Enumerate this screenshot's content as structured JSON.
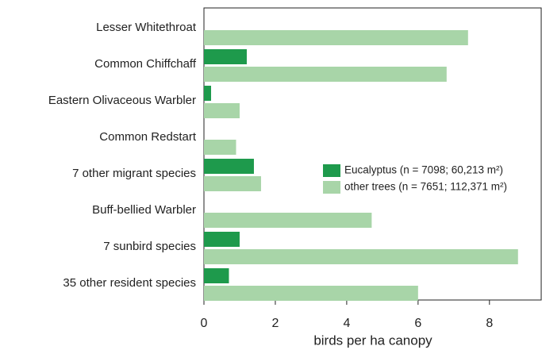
{
  "chart_data": {
    "type": "barh",
    "categories": [
      "Lesser Whitethroat",
      "Common Chiffchaff",
      "Eastern Olivaceous Warbler",
      "Common Redstart",
      "7 other migrant species",
      "Buff-bellied Warbler",
      "7 sunbird species",
      "35 other resident species"
    ],
    "series": [
      {
        "name": "Eucalyptus (n = 7098; 60,213 m²)",
        "color": "#1e9a4c",
        "values": [
          0,
          1.2,
          0.2,
          0,
          1.4,
          0,
          1.0,
          0.7
        ]
      },
      {
        "name": "other trees (n = 7651; 112,371 m²)",
        "color": "#a8d5a8",
        "values": [
          7.4,
          6.8,
          1.0,
          0.9,
          1.6,
          4.7,
          8.8,
          6.0
        ]
      }
    ],
    "xlabel": "birds per ha canopy",
    "xlim": [
      0,
      9.45
    ],
    "xticks": [
      0,
      2,
      4,
      6,
      8
    ]
  }
}
